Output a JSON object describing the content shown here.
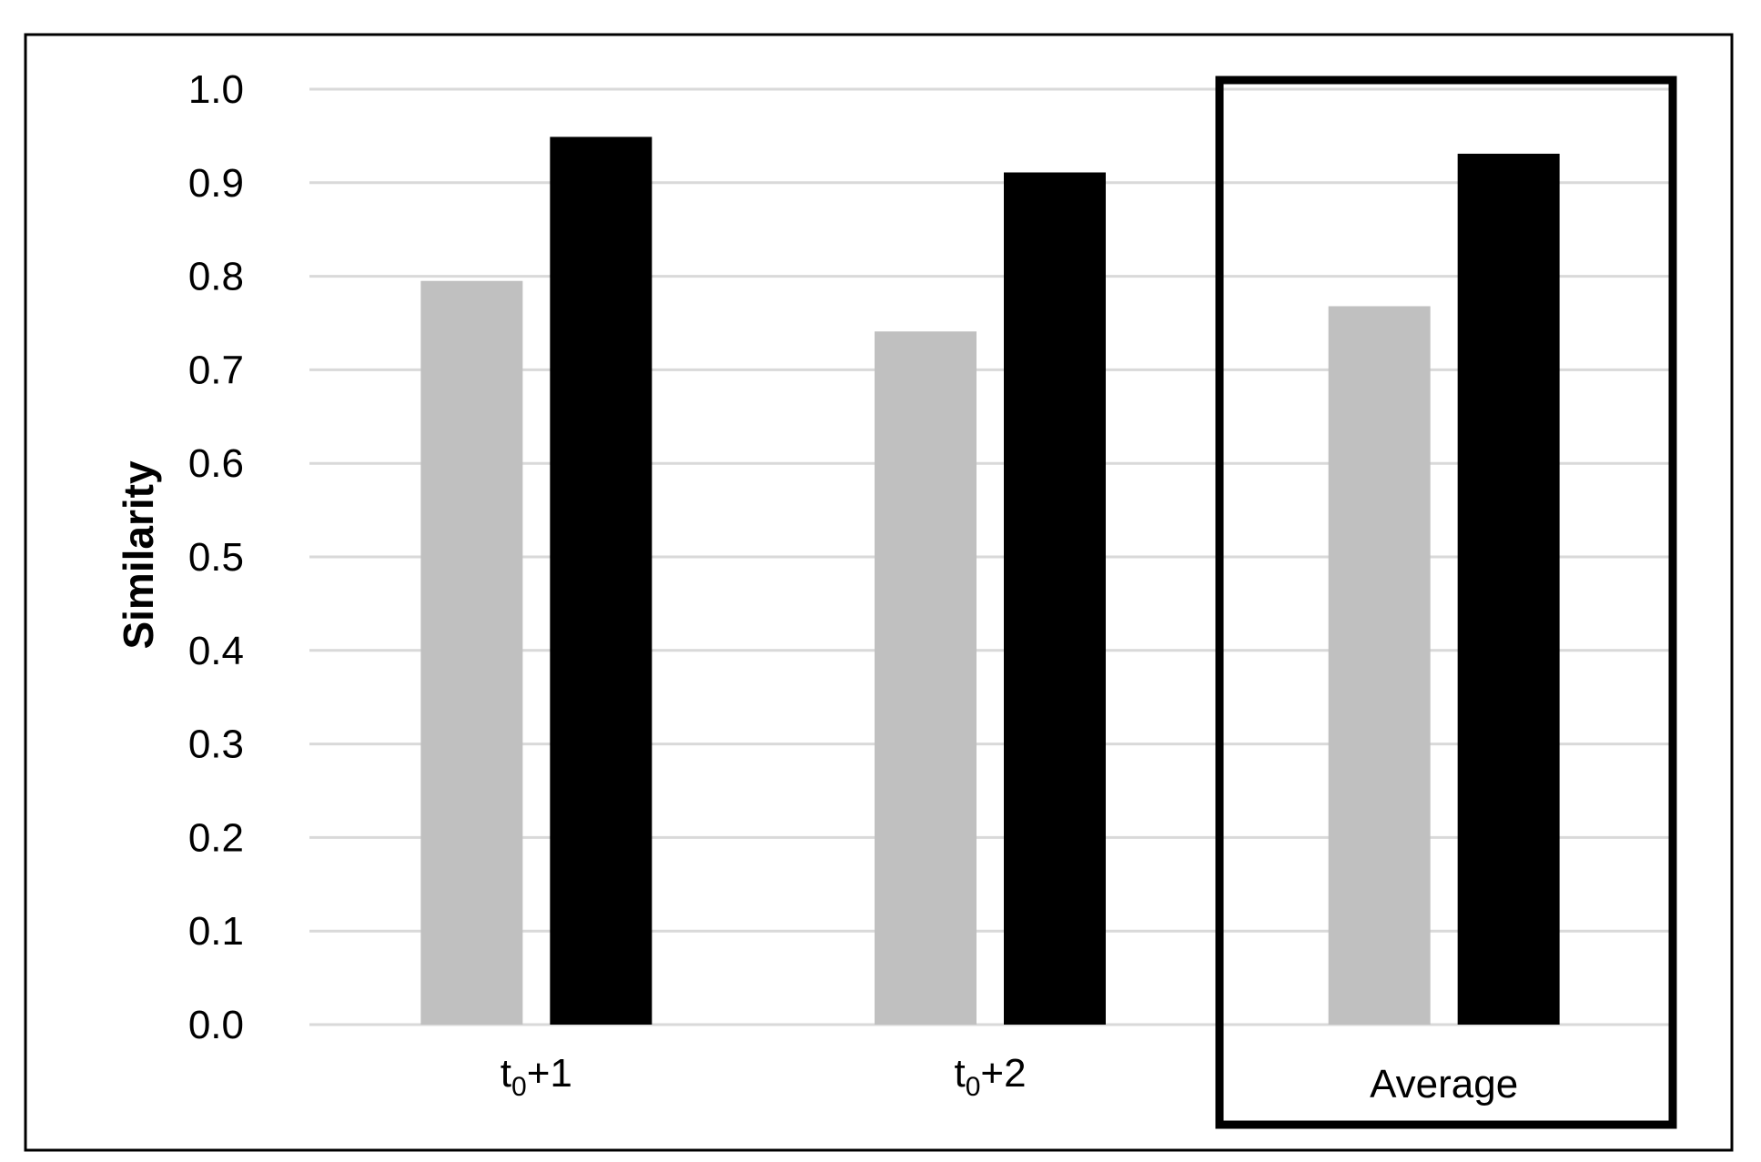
{
  "chart_data": {
    "type": "bar",
    "title": "",
    "xlabel": "",
    "ylabel": "Similarity",
    "ylim": [
      0,
      1.0
    ],
    "yticks": [
      "0.0",
      "0.1",
      "0.2",
      "0.3",
      "0.4",
      "0.5",
      "0.6",
      "0.7",
      "0.8",
      "0.9",
      "1.0"
    ],
    "grid": true,
    "legend": "none",
    "categories": [
      {
        "base": "t",
        "sub": "0",
        "suffix": "+1"
      },
      {
        "base": "t",
        "sub": "0",
        "suffix": "+2"
      },
      {
        "base": "Average",
        "sub": "",
        "suffix": ""
      }
    ],
    "series": [
      {
        "color": "#c0c0c0",
        "values": [
          0.795,
          0.741,
          0.768
        ]
      },
      {
        "color": "#000000",
        "values": [
          0.949,
          0.911,
          0.931
        ]
      }
    ],
    "highlighted_category": "Average",
    "gridline_color": "#d9d9d9"
  }
}
